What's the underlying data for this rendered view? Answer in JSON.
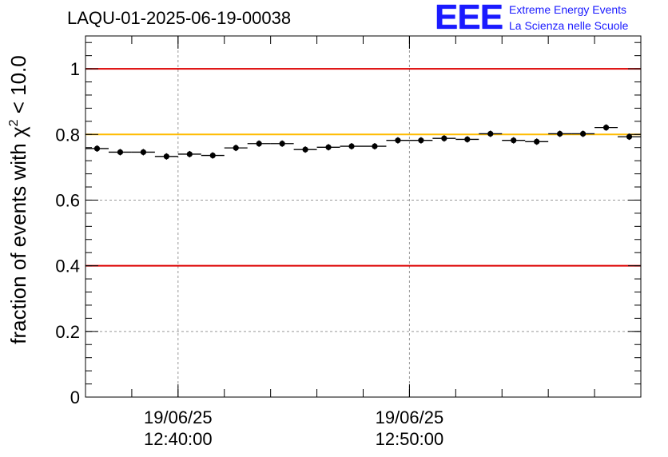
{
  "header": {
    "title": "LAQU-01-2025-06-19-00038",
    "logo_letters": "EEE",
    "logo_line1": "Extreme Energy Events",
    "logo_line2": "La Scienza nelle Scuole"
  },
  "colors": {
    "threshold_red": "#dd0000",
    "reference_yellow": "#ffbb00",
    "logo_blue": "#1a1aff",
    "grid": "#999999"
  },
  "chart_data": {
    "type": "scatter",
    "title": "LAQU-01-2025-06-19-00038",
    "xlabel": "",
    "ylabel": "fraction of events with χ² < 10.0",
    "ylabel_parts": {
      "main": "fraction of events with χ",
      "sup": "2",
      "tail": " < 10.0"
    },
    "x_units": "minutes after 12:30:00",
    "xlim": [
      0,
      24
    ],
    "ylim": [
      0,
      1.1
    ],
    "y_ticks": [
      0,
      0.2,
      0.4,
      0.6,
      0.8,
      1
    ],
    "y_tick_labels": [
      "0",
      "0.2",
      "0.4",
      "0.6",
      "0.8",
      "1"
    ],
    "x_major_ticks": [
      {
        "x": 4,
        "label_date": "19/06/25",
        "label_time": "12:40:00"
      },
      {
        "x": 14,
        "label_date": "19/06/25",
        "label_time": "12:50:00"
      }
    ],
    "x_minor_step": 2,
    "grid": true,
    "bin_width": 1,
    "x_centers": [
      0.5,
      1.5,
      2.5,
      3.5,
      4.5,
      5.5,
      6.5,
      7.5,
      8.5,
      9.5,
      10.5,
      11.5,
      12.5,
      13.5,
      14.5,
      15.5,
      16.5,
      17.5,
      18.5,
      19.5,
      20.5,
      21.5,
      22.5,
      23.5
    ],
    "values": [
      0.757,
      0.746,
      0.746,
      0.733,
      0.74,
      0.736,
      0.759,
      0.772,
      0.772,
      0.754,
      0.761,
      0.764,
      0.764,
      0.782,
      0.782,
      0.788,
      0.785,
      0.802,
      0.782,
      0.778,
      0.802,
      0.802,
      0.821,
      0.793
    ],
    "hlines": [
      {
        "y": 1.0,
        "color": "#dd0000",
        "label": "upper threshold"
      },
      {
        "y": 0.8,
        "color": "#ffbb00",
        "label": "reference"
      },
      {
        "y": 0.4,
        "color": "#dd0000",
        "label": "lower threshold"
      }
    ]
  }
}
